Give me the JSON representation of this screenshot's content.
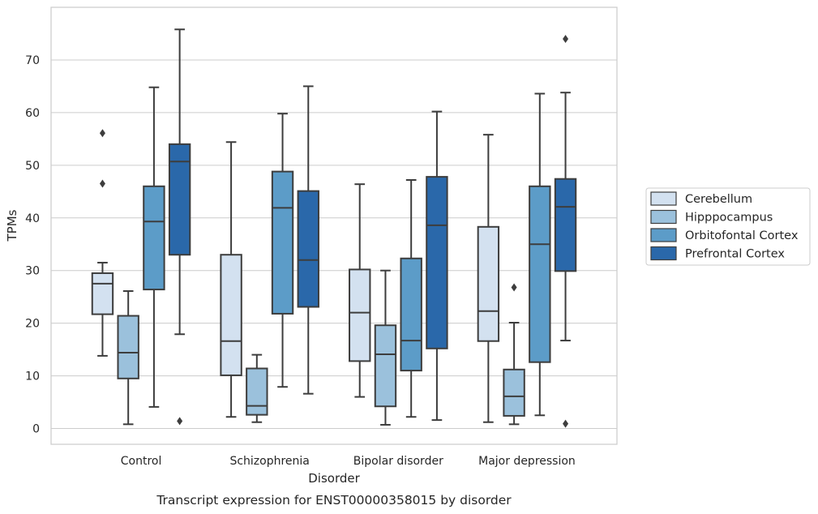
{
  "chart_data": {
    "type": "box",
    "title": "",
    "caption": "Transcript expression for ENST00000358015 by disorder",
    "xlabel": "Disorder",
    "ylabel": "TPMs",
    "ylim": [
      -3,
      80
    ],
    "yticks": [
      0,
      10,
      20,
      30,
      40,
      50,
      60,
      70
    ],
    "grid": "horizontal",
    "legend_position": "right",
    "categories": [
      "Control",
      "Schizophrenia",
      "Bipolar disorder",
      "Major depression"
    ],
    "series": [
      {
        "name": "Cerebellum",
        "color": "#d3e1f0",
        "boxes": [
          {
            "whislo": 13.8,
            "q1": 21.7,
            "med": 27.5,
            "q3": 29.5,
            "whishi": 31.5,
            "fliers": [
              46.5,
              56.1
            ]
          },
          {
            "whislo": 2.2,
            "q1": 10.1,
            "med": 16.6,
            "q3": 33.0,
            "whishi": 54.4,
            "fliers": []
          },
          {
            "whislo": 6.0,
            "q1": 12.8,
            "med": 22.0,
            "q3": 30.2,
            "whishi": 46.4,
            "fliers": []
          },
          {
            "whislo": 1.2,
            "q1": 16.6,
            "med": 22.3,
            "q3": 38.3,
            "whishi": 55.8,
            "fliers": []
          }
        ]
      },
      {
        "name": "Hipppocampus",
        "color": "#9bc1dc",
        "boxes": [
          {
            "whislo": 0.8,
            "q1": 9.5,
            "med": 14.4,
            "q3": 21.4,
            "whishi": 26.1,
            "fliers": []
          },
          {
            "whislo": 1.2,
            "q1": 2.6,
            "med": 4.3,
            "q3": 11.4,
            "whishi": 14.0,
            "fliers": []
          },
          {
            "whislo": 0.7,
            "q1": 4.2,
            "med": 14.1,
            "q3": 19.6,
            "whishi": 30.0,
            "fliers": []
          },
          {
            "whislo": 0.8,
            "q1": 2.4,
            "med": 6.1,
            "q3": 11.2,
            "whishi": 20.1,
            "fliers": [
              26.8
            ]
          }
        ]
      },
      {
        "name": "Orbitofontal Cortex",
        "color": "#5c9cc8",
        "boxes": [
          {
            "whislo": 4.1,
            "q1": 26.4,
            "med": 39.3,
            "q3": 46.0,
            "whishi": 64.8,
            "fliers": []
          },
          {
            "whislo": 7.9,
            "q1": 21.8,
            "med": 41.9,
            "q3": 48.8,
            "whishi": 59.8,
            "fliers": []
          },
          {
            "whislo": 2.2,
            "q1": 11.0,
            "med": 16.7,
            "q3": 32.3,
            "whishi": 47.2,
            "fliers": []
          },
          {
            "whislo": 2.5,
            "q1": 12.6,
            "med": 35.0,
            "q3": 46.0,
            "whishi": 63.6,
            "fliers": []
          }
        ]
      },
      {
        "name": "Prefrontal Cortex",
        "color": "#2a68aa",
        "boxes": [
          {
            "whislo": 17.9,
            "q1": 33.0,
            "med": 50.7,
            "q3": 54.0,
            "whishi": 75.8,
            "fliers": [
              1.4
            ]
          },
          {
            "whislo": 6.6,
            "q1": 23.1,
            "med": 32.0,
            "q3": 45.1,
            "whishi": 65.0,
            "fliers": []
          },
          {
            "whislo": 1.6,
            "q1": 15.2,
            "med": 38.6,
            "q3": 47.8,
            "whishi": 60.2,
            "fliers": []
          },
          {
            "whislo": 16.7,
            "q1": 29.9,
            "med": 42.1,
            "q3": 47.4,
            "whishi": 63.8,
            "fliers": [
              0.9,
              74.0
            ]
          }
        ]
      }
    ]
  }
}
